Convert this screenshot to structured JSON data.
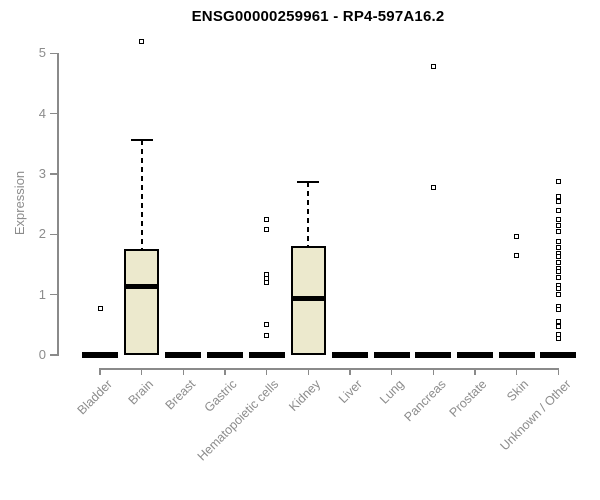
{
  "chart_data": {
    "type": "box",
    "title": "ENSG00000259961 - RP4-597A16.2",
    "ylabel": "Expression",
    "xlabel": "",
    "ylim": [
      0,
      5
    ],
    "yticks": [
      0,
      1,
      2,
      3,
      4,
      5
    ],
    "grid": false,
    "legend": false,
    "box_fill": "#ECE9CD",
    "box_border": "#000000",
    "axis_color": "#8A8A8A",
    "tick_label_color": "#8C8C8C",
    "groups": [
      {
        "label": "Bladder",
        "q1": 0,
        "median": 0,
        "q3": 0,
        "whisker_low": 0,
        "whisker_high": 0,
        "outliers": [
          0.77
        ]
      },
      {
        "label": "Brain",
        "q1": 0,
        "median": 1.13,
        "q3": 1.76,
        "whisker_low": 0,
        "whisker_high": 3.56,
        "outliers": [
          5.2
        ]
      },
      {
        "label": "Breast",
        "q1": 0,
        "median": 0,
        "q3": 0,
        "whisker_low": 0,
        "whisker_high": 0,
        "outliers": []
      },
      {
        "label": "Gastric",
        "q1": 0,
        "median": 0,
        "q3": 0,
        "whisker_low": 0,
        "whisker_high": 0,
        "outliers": []
      },
      {
        "label": "Hematopoietic cells",
        "q1": 0,
        "median": 0,
        "q3": 0,
        "whisker_low": 0,
        "whisker_high": 0,
        "outliers": [
          2.25,
          2.08,
          1.33,
          1.27,
          1.2,
          0.5,
          0.33
        ]
      },
      {
        "label": "Kidney",
        "q1": 0,
        "median": 0.94,
        "q3": 1.81,
        "whisker_low": 0,
        "whisker_high": 2.87,
        "outliers": []
      },
      {
        "label": "Liver",
        "q1": 0,
        "median": 0,
        "q3": 0,
        "whisker_low": 0,
        "whisker_high": 0,
        "outliers": []
      },
      {
        "label": "Lung",
        "q1": 0,
        "median": 0,
        "q3": 0,
        "whisker_low": 0,
        "whisker_high": 0,
        "outliers": []
      },
      {
        "label": "Pancreas",
        "q1": 0,
        "median": 0,
        "q3": 0,
        "whisker_low": 0,
        "whisker_high": 0,
        "outliers": [
          4.78,
          2.78
        ]
      },
      {
        "label": "Prostate",
        "q1": 0,
        "median": 0,
        "q3": 0,
        "whisker_low": 0,
        "whisker_high": 0,
        "outliers": []
      },
      {
        "label": "Skin",
        "q1": 0,
        "median": 0,
        "q3": 0,
        "whisker_low": 0,
        "whisker_high": 0,
        "outliers": [
          1.97,
          1.65
        ]
      },
      {
        "label": "Unknown / Other",
        "q1": 0,
        "median": 0,
        "q3": 0,
        "whisker_low": 0,
        "whisker_high": 0,
        "outliers": [
          2.87,
          2.62,
          2.54,
          2.4,
          2.24,
          2.14,
          2.04,
          1.88,
          1.78,
          1.69,
          1.63,
          1.54,
          1.44,
          1.38,
          1.28,
          1.16,
          1.1,
          1.0,
          0.8,
          0.76,
          0.56,
          0.48,
          0.34,
          0.28
        ]
      }
    ]
  }
}
